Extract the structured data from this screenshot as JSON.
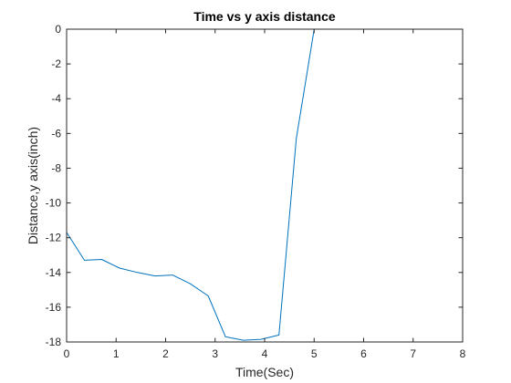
{
  "chart_data": {
    "type": "line",
    "title": "Time vs y axis distance",
    "xlabel": "Time(Sec)",
    "ylabel": "Distance,y axis(inch)",
    "xlim": [
      0,
      8
    ],
    "ylim": [
      -18,
      0
    ],
    "xticks": [
      "0",
      "1",
      "2",
      "3",
      "4",
      "5",
      "6",
      "7",
      "8"
    ],
    "yticks": [
      "0",
      "-2",
      "-4",
      "-6",
      "-8",
      "-10",
      "-12",
      "-14",
      "-16",
      "-18"
    ],
    "grid": false,
    "series": [
      {
        "color": "#0072BD",
        "x": [
          0,
          0.36,
          0.71,
          1.07,
          1.43,
          1.79,
          2.14,
          2.5,
          2.86,
          3.21,
          3.57,
          3.93,
          4.29,
          4.64,
          5.0,
          5.36,
          5.71,
          6.07,
          6.43,
          6.79,
          7.0
        ],
        "y": [
          -11.7,
          -13.3,
          -13.25,
          -13.75,
          -14.0,
          -14.2,
          -14.15,
          -14.65,
          -15.35,
          -17.7,
          -17.9,
          -17.85,
          -17.6,
          -6.3,
          0,
          0,
          0,
          0,
          0,
          0,
          0
        ]
      }
    ]
  }
}
